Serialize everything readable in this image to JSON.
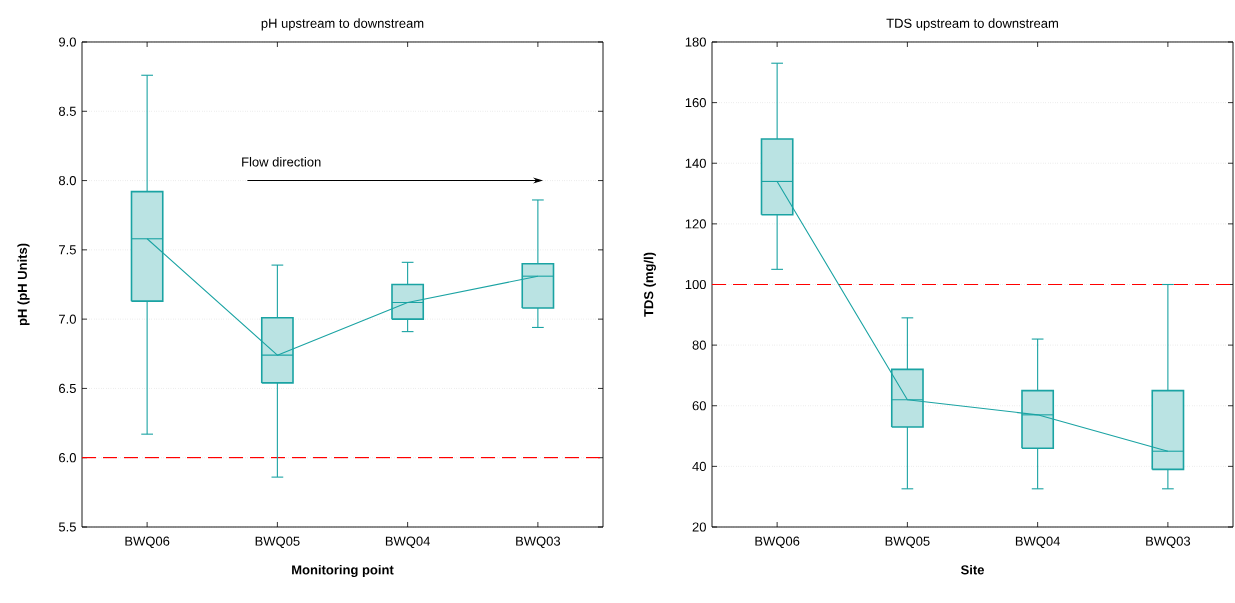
{
  "chart_data": [
    {
      "type": "box",
      "title": "pH upstream to downstream",
      "xlabel": "Monitoring point",
      "ylabel": "pH (pH Units)",
      "categories": [
        "BWQ06",
        "BWQ05",
        "BWQ04",
        "BWQ03"
      ],
      "ylim": [
        5.5,
        9.0
      ],
      "yticks": [
        {
          "value": 5.5,
          "label": "5.5"
        },
        {
          "value": 6.0,
          "label": "6.0"
        },
        {
          "value": 6.5,
          "label": "6.5"
        },
        {
          "value": 7.0,
          "label": "7.0"
        },
        {
          "value": 7.5,
          "label": "7.5"
        },
        {
          "value": 8.0,
          "label": "8.0"
        },
        {
          "value": 8.5,
          "label": "8.5"
        },
        {
          "value": 9.0,
          "label": "9.0"
        }
      ],
      "grid": "y",
      "ref_lines": [
        {
          "axis": "y",
          "value": 6.0,
          "color": "#ff0000",
          "line_style": "dashed"
        }
      ],
      "annotations": [
        "Flow direction"
      ],
      "series": [
        {
          "color": "#1aa3a3",
          "boxes": [
            {
              "low": 6.17,
              "q1": 7.13,
              "median": 7.58,
              "q3": 7.92,
              "high": 8.76
            },
            {
              "low": 5.86,
              "q1": 6.54,
              "median": 6.74,
              "q3": 7.01,
              "high": 7.39
            },
            {
              "low": 6.91,
              "q1": 7.0,
              "median": 7.12,
              "q3": 7.25,
              "high": 7.41
            },
            {
              "low": 6.94,
              "q1": 7.08,
              "median": 7.31,
              "q3": 7.4,
              "high": 7.86
            }
          ]
        },
        {
          "type": "line",
          "color": "#1aa3a3",
          "values": [
            7.58,
            6.74,
            7.12,
            7.31
          ]
        }
      ]
    },
    {
      "type": "box",
      "title": "TDS upstream to downstream",
      "xlabel": "Site",
      "ylabel": "TDS (mg/l)",
      "categories": [
        "BWQ06",
        "BWQ05",
        "BWQ04",
        "BWQ03"
      ],
      "ylim": [
        20,
        180
      ],
      "yticks": [
        20,
        40,
        60,
        80,
        100,
        120,
        140,
        160,
        180
      ],
      "grid": "y",
      "ref_lines": [
        {
          "axis": "y",
          "value": 100,
          "color": "#ff0000",
          "line_style": "dashed"
        }
      ],
      "series": [
        {
          "color": "#1aa3a3",
          "boxes": [
            {
              "low": 105,
              "q1": 123,
              "median": 134,
              "q3": 148,
              "high": 173
            },
            {
              "low": 32.6,
              "q1": 53,
              "median": 62,
              "q3": 72,
              "high": 89
            },
            {
              "low": 32.6,
              "q1": 46,
              "median": 57,
              "q3": 65,
              "high": 82
            },
            {
              "low": 32.6,
              "q1": 39,
              "median": 45,
              "q3": 65,
              "high": 100
            }
          ]
        },
        {
          "type": "line",
          "color": "#1aa3a3",
          "values": [
            134,
            62,
            57,
            45
          ]
        }
      ]
    }
  ]
}
